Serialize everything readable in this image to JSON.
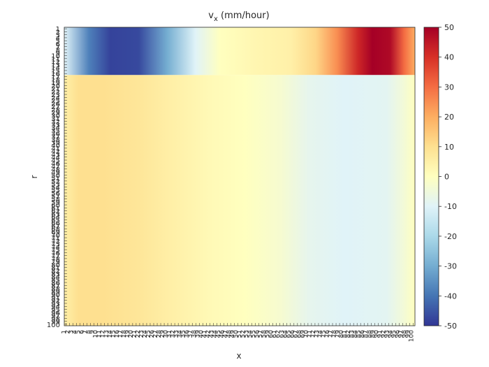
{
  "chart_data": {
    "type": "heatmap",
    "title_main": "v",
    "title_sub": "x",
    "title_units": " (mm/hour)",
    "xlabel": "x",
    "ylabel": "r",
    "x_range": [
      1,
      100
    ],
    "y_range": [
      1,
      100
    ],
    "y_reversed": true,
    "colorbar": {
      "colormap": "RdYlBu reversed",
      "clim": [
        -50,
        50
      ],
      "ticks": [
        50,
        40,
        30,
        20,
        10,
        0,
        -10,
        -20,
        -30,
        -40,
        -50
      ],
      "colors": [
        "#313695",
        "#4575b4",
        "#74add1",
        "#abd9e9",
        "#e0f3f8",
        "#ffffbf",
        "#fee090",
        "#fdae61",
        "#f46d43",
        "#d73027",
        "#a50026"
      ]
    },
    "rows_upper": {
      "r_range": [
        1,
        16
      ],
      "x_profile": [
        [
          1,
          -10
        ],
        [
          8,
          -38
        ],
        [
          14,
          -48
        ],
        [
          22,
          -47
        ],
        [
          30,
          -30
        ],
        [
          38,
          -10
        ],
        [
          45,
          0
        ],
        [
          55,
          3
        ],
        [
          65,
          5
        ],
        [
          72,
          12
        ],
        [
          78,
          25
        ],
        [
          84,
          42
        ],
        [
          88,
          50
        ],
        [
          93,
          48
        ],
        [
          97,
          30
        ],
        [
          100,
          20
        ]
      ]
    },
    "rows_lower": {
      "r_range": [
        17,
        100
      ],
      "x_profile": [
        [
          1,
          5
        ],
        [
          5,
          10
        ],
        [
          12,
          10
        ],
        [
          22,
          8
        ],
        [
          32,
          5
        ],
        [
          42,
          2
        ],
        [
          52,
          0
        ],
        [
          62,
          -3
        ],
        [
          70,
          -8
        ],
        [
          80,
          -10
        ],
        [
          92,
          -9
        ],
        [
          97,
          -4
        ],
        [
          100,
          0
        ]
      ]
    }
  }
}
